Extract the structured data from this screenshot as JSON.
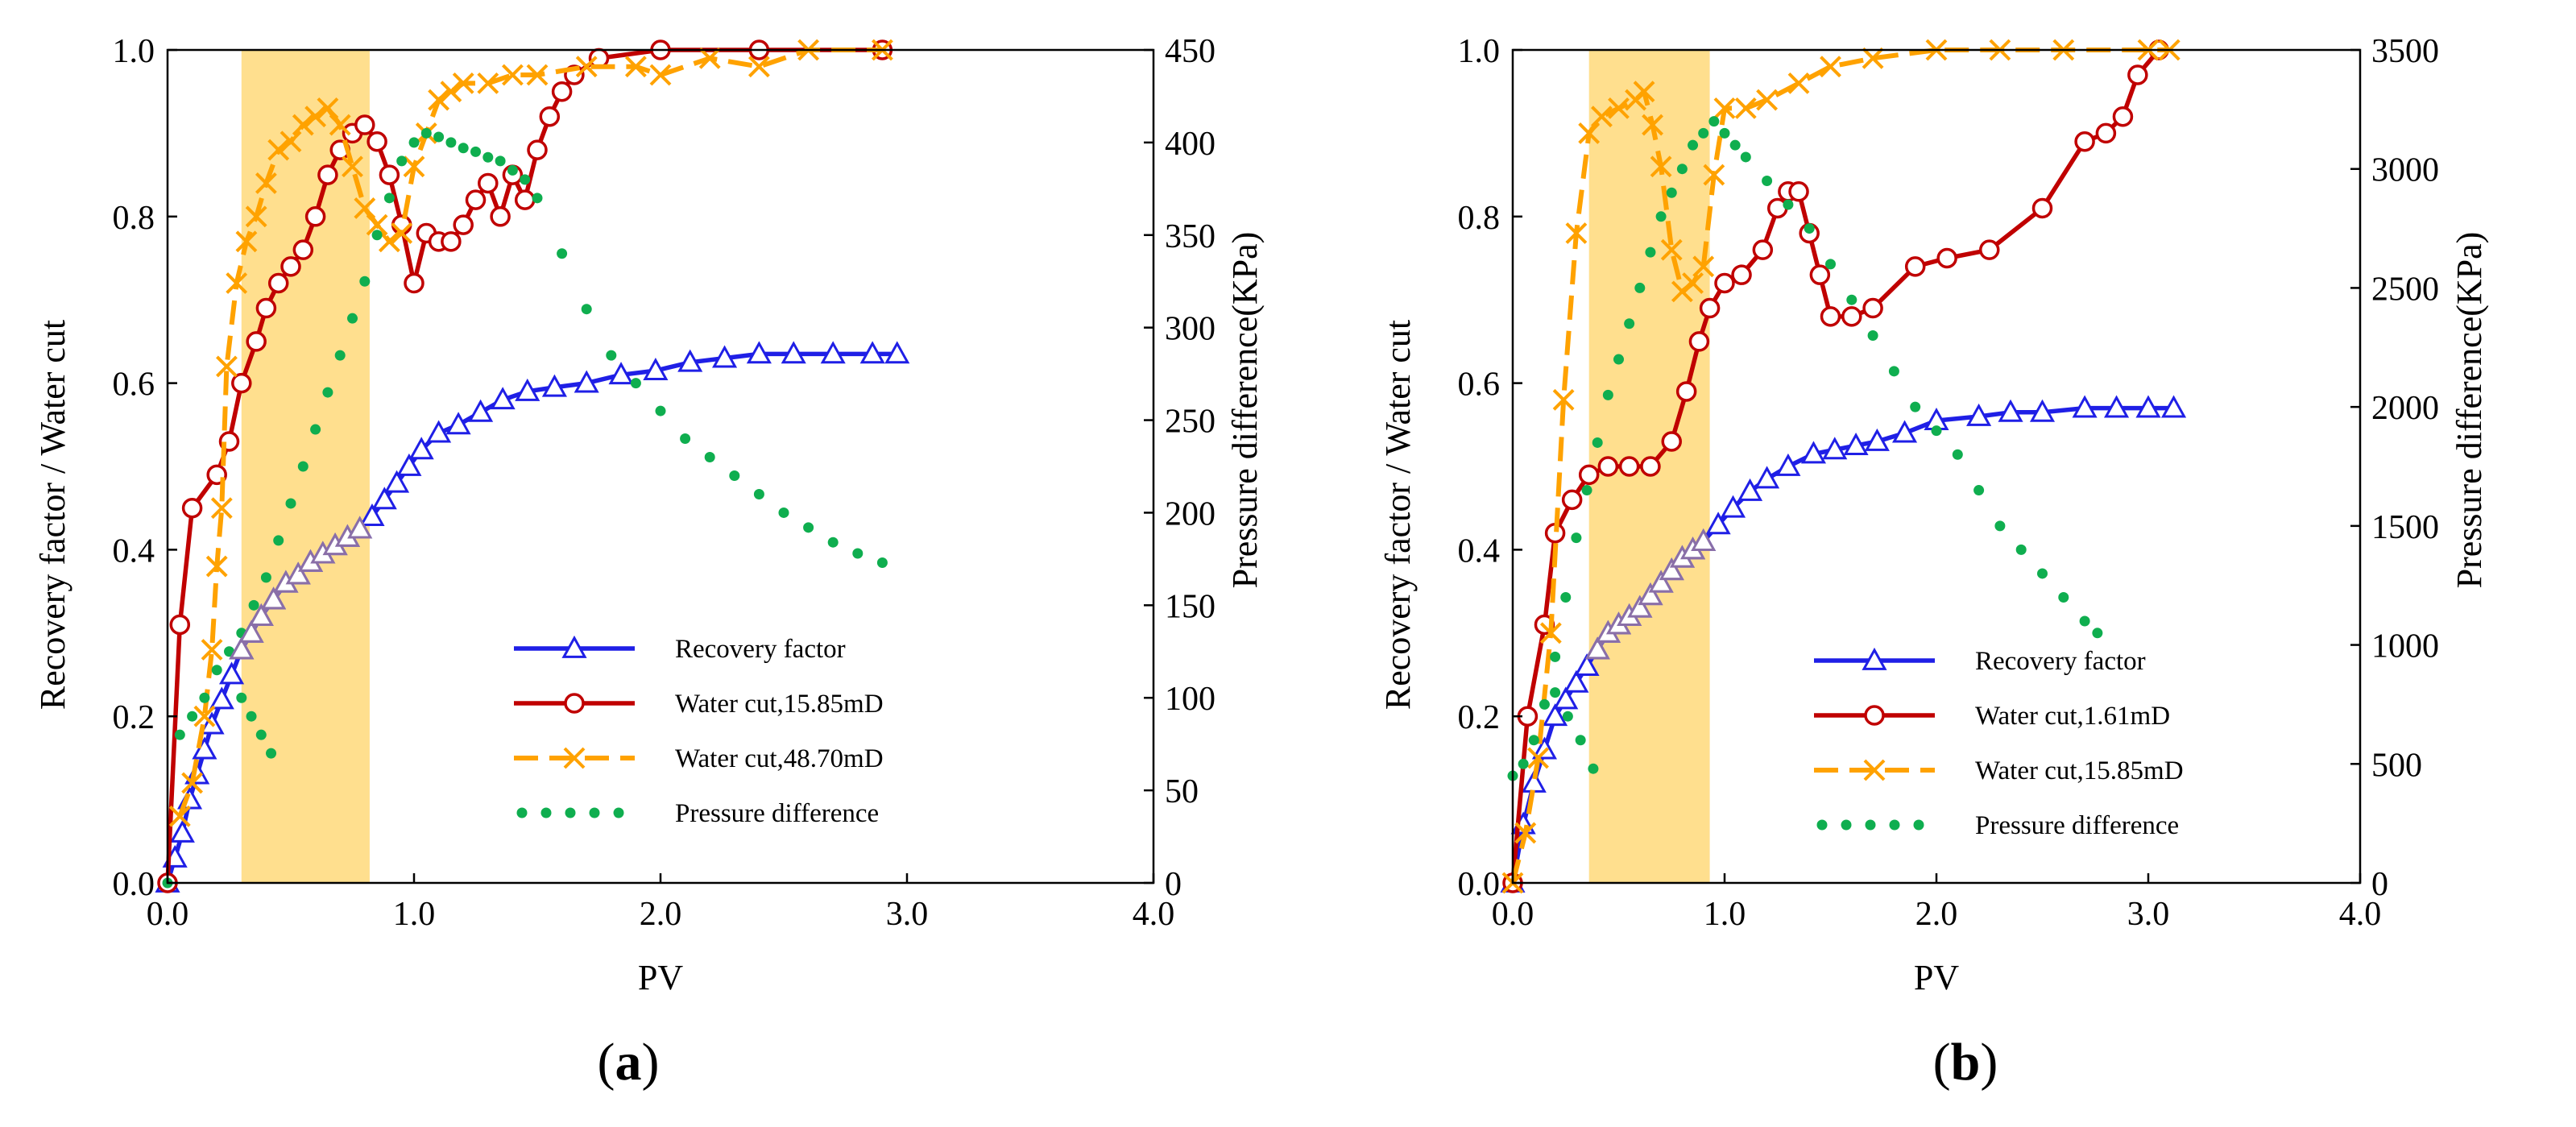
{
  "colors": {
    "recovery": "#1f1fe6",
    "water_a": "#c00000",
    "water_b": "#ffa200",
    "pressure": "#0fae4f",
    "highlight": "#ffd97a",
    "purple_overlay": "#8a6fa8"
  },
  "chart_data": [
    {
      "type": "line",
      "panel": "a",
      "caption_open": "(",
      "caption_letter": "a",
      "caption_close": ")",
      "xlabel": "PV",
      "ylabel": "Recovery factor / Water cut",
      "y2label": "Pressure difference(KPa)",
      "xlim": [
        0,
        4.0
      ],
      "ylim": [
        0,
        1.0
      ],
      "y2lim": [
        0,
        450
      ],
      "xticks": [
        "0.0",
        "1.0",
        "2.0",
        "3.0",
        "4.0"
      ],
      "yticks": [
        "0.0",
        "0.2",
        "0.4",
        "0.6",
        "0.8",
        "1.0"
      ],
      "y2ticks": [
        "0",
        "50",
        "100",
        "150",
        "200",
        "250",
        "300",
        "350",
        "400",
        "450"
      ],
      "highlight_range": [
        0.3,
        0.82
      ],
      "legend_position": "center-right",
      "series": [
        {
          "name": "Recovery factor",
          "style": "solid-triangle",
          "axis": "left",
          "x": [
            0.0,
            0.03,
            0.06,
            0.09,
            0.12,
            0.15,
            0.18,
            0.22,
            0.26,
            0.3,
            0.34,
            0.38,
            0.43,
            0.48,
            0.53,
            0.58,
            0.63,
            0.68,
            0.73,
            0.78,
            0.83,
            0.88,
            0.93,
            0.98,
            1.03,
            1.1,
            1.18,
            1.27,
            1.36,
            1.46,
            1.57,
            1.7,
            1.84,
            1.98,
            2.12,
            2.26,
            2.4,
            2.54,
            2.7,
            2.86,
            2.96
          ],
          "y": [
            0.0,
            0.03,
            0.06,
            0.1,
            0.13,
            0.16,
            0.19,
            0.22,
            0.25,
            0.28,
            0.3,
            0.32,
            0.34,
            0.36,
            0.37,
            0.385,
            0.395,
            0.405,
            0.415,
            0.425,
            0.44,
            0.46,
            0.48,
            0.5,
            0.52,
            0.54,
            0.55,
            0.565,
            0.58,
            0.59,
            0.595,
            0.6,
            0.61,
            0.615,
            0.625,
            0.63,
            0.635,
            0.635,
            0.635,
            0.635,
            0.635
          ]
        },
        {
          "name": "Water cut,15.85mD",
          "style": "solid-circle",
          "axis": "left",
          "x": [
            0.0,
            0.05,
            0.1,
            0.2,
            0.25,
            0.3,
            0.36,
            0.4,
            0.45,
            0.5,
            0.55,
            0.6,
            0.65,
            0.7,
            0.75,
            0.8,
            0.85,
            0.9,
            0.95,
            1.0,
            1.05,
            1.1,
            1.15,
            1.2,
            1.25,
            1.3,
            1.35,
            1.4,
            1.45,
            1.5,
            1.55,
            1.6,
            1.65,
            1.75,
            2.0,
            2.4,
            2.9
          ],
          "y": [
            0.0,
            0.31,
            0.45,
            0.49,
            0.53,
            0.6,
            0.65,
            0.69,
            0.72,
            0.74,
            0.76,
            0.8,
            0.85,
            0.88,
            0.9,
            0.91,
            0.89,
            0.85,
            0.79,
            0.72,
            0.78,
            0.77,
            0.77,
            0.79,
            0.82,
            0.84,
            0.8,
            0.85,
            0.82,
            0.88,
            0.92,
            0.95,
            0.97,
            0.99,
            1.0,
            1.0,
            1.0
          ]
        },
        {
          "name": "Water cut,48.70mD",
          "style": "dash-cross",
          "axis": "left",
          "x": [
            0.05,
            0.1,
            0.15,
            0.18,
            0.2,
            0.22,
            0.24,
            0.28,
            0.32,
            0.36,
            0.4,
            0.45,
            0.5,
            0.55,
            0.6,
            0.65,
            0.7,
            0.75,
            0.8,
            0.85,
            0.9,
            0.95,
            1.0,
            1.05,
            1.1,
            1.15,
            1.2,
            1.3,
            1.4,
            1.5,
            1.7,
            1.9,
            2.0,
            2.2,
            2.4,
            2.6,
            2.9
          ],
          "y": [
            0.08,
            0.12,
            0.2,
            0.28,
            0.38,
            0.45,
            0.62,
            0.72,
            0.77,
            0.8,
            0.84,
            0.88,
            0.89,
            0.91,
            0.92,
            0.93,
            0.91,
            0.86,
            0.81,
            0.79,
            0.77,
            0.78,
            0.86,
            0.9,
            0.94,
            0.95,
            0.96,
            0.96,
            0.97,
            0.97,
            0.98,
            0.98,
            0.97,
            0.99,
            0.98,
            1.0,
            1.0
          ]
        },
        {
          "name": "Pressure difference",
          "style": "dotted",
          "axis": "right",
          "x": [
            0.0,
            0.05,
            0.1,
            0.15,
            0.2,
            0.25,
            0.3,
            0.35,
            0.4,
            0.45,
            0.5,
            0.55,
            0.6,
            0.65,
            0.7,
            0.75,
            0.8,
            0.85,
            0.9,
            0.95,
            1.0,
            1.05,
            1.1,
            1.15,
            1.2,
            1.25,
            1.3,
            1.35,
            1.4,
            1.45,
            1.5,
            1.6,
            1.7,
            1.8,
            1.9,
            2.0,
            2.1,
            2.2,
            2.3,
            2.4,
            2.5,
            2.6,
            2.7,
            2.8,
            2.9
          ],
          "y": [
            0,
            80,
            90,
            100,
            115,
            125,
            135,
            150,
            165,
            185,
            205,
            225,
            245,
            265,
            285,
            305,
            325,
            350,
            370,
            390,
            400,
            405,
            403,
            400,
            397,
            395,
            392,
            390,
            385,
            380,
            370,
            340,
            310,
            285,
            270,
            255,
            240,
            230,
            220,
            210,
            200,
            192,
            184,
            178,
            173
          ]
        },
        {
          "name": "Pressure difference (early)",
          "style": "dotted",
          "axis": "right",
          "x": [
            0.3,
            0.34,
            0.38,
            0.42
          ],
          "y": [
            100,
            90,
            80,
            70
          ]
        }
      ],
      "legend": [
        {
          "label": "Recovery factor",
          "style": "solid-triangle",
          "color": "#1f1fe6"
        },
        {
          "label": "Water cut,15.85mD",
          "style": "solid-circle",
          "color": "#c00000"
        },
        {
          "label": "Water cut,48.70mD",
          "style": "dash-cross",
          "color": "#ffa200"
        },
        {
          "label": "Pressure difference",
          "style": "dotted",
          "color": "#0fae4f"
        }
      ]
    },
    {
      "type": "line",
      "panel": "b",
      "caption_open": "(",
      "caption_letter": "b",
      "caption_close": ")",
      "xlabel": "PV",
      "ylabel": "Recovery factor / Water cut",
      "y2label": "Pressure difference(KPa)",
      "xlim": [
        0,
        4.0
      ],
      "ylim": [
        0,
        1.0
      ],
      "y2lim": [
        0,
        3500
      ],
      "xticks": [
        "0.0",
        "1.0",
        "2.0",
        "3.0",
        "4.0"
      ],
      "yticks": [
        "0.0",
        "0.2",
        "0.4",
        "0.6",
        "0.8",
        "1.0"
      ],
      "y2ticks": [
        "0",
        "500",
        "1000",
        "1500",
        "2000",
        "2500",
        "3000",
        "3500"
      ],
      "highlight_range": [
        0.36,
        0.93
      ],
      "legend_position": "center-right",
      "series": [
        {
          "name": "Recovery factor",
          "style": "solid-triangle",
          "axis": "left",
          "x": [
            0.0,
            0.05,
            0.1,
            0.15,
            0.2,
            0.25,
            0.3,
            0.35,
            0.4,
            0.45,
            0.5,
            0.55,
            0.6,
            0.65,
            0.7,
            0.75,
            0.8,
            0.85,
            0.9,
            0.97,
            1.04,
            1.12,
            1.2,
            1.3,
            1.42,
            1.52,
            1.62,
            1.72,
            1.85,
            2.0,
            2.2,
            2.35,
            2.5,
            2.7,
            2.85,
            3.0,
            3.12
          ],
          "y": [
            0.0,
            0.07,
            0.12,
            0.16,
            0.2,
            0.22,
            0.24,
            0.26,
            0.28,
            0.3,
            0.31,
            0.32,
            0.33,
            0.345,
            0.36,
            0.375,
            0.39,
            0.4,
            0.41,
            0.43,
            0.45,
            0.47,
            0.485,
            0.5,
            0.515,
            0.52,
            0.525,
            0.53,
            0.54,
            0.555,
            0.56,
            0.565,
            0.565,
            0.57,
            0.57,
            0.57,
            0.57
          ]
        },
        {
          "name": "Water cut,1.61mD",
          "style": "solid-circle",
          "axis": "left",
          "x": [
            0.0,
            0.07,
            0.15,
            0.2,
            0.28,
            0.36,
            0.45,
            0.55,
            0.65,
            0.75,
            0.82,
            0.88,
            0.93,
            1.0,
            1.08,
            1.18,
            1.25,
            1.3,
            1.35,
            1.4,
            1.45,
            1.5,
            1.6,
            1.7,
            1.9,
            2.05,
            2.25,
            2.5,
            2.7,
            2.8,
            2.88,
            2.95,
            3.05
          ],
          "y": [
            0.0,
            0.2,
            0.31,
            0.42,
            0.46,
            0.49,
            0.5,
            0.5,
            0.5,
            0.53,
            0.59,
            0.65,
            0.69,
            0.72,
            0.73,
            0.76,
            0.81,
            0.83,
            0.83,
            0.78,
            0.73,
            0.68,
            0.68,
            0.69,
            0.74,
            0.75,
            0.76,
            0.81,
            0.89,
            0.9,
            0.92,
            0.97,
            1.0
          ]
        },
        {
          "name": "Water cut,15.85mD",
          "style": "dash-cross",
          "axis": "left",
          "x": [
            0.0,
            0.06,
            0.12,
            0.18,
            0.24,
            0.3,
            0.36,
            0.42,
            0.5,
            0.58,
            0.62,
            0.66,
            0.7,
            0.75,
            0.8,
            0.85,
            0.9,
            0.95,
            1.0,
            1.1,
            1.2,
            1.35,
            1.5,
            1.7,
            2.0,
            2.3,
            2.6,
            3.0,
            3.1
          ],
          "y": [
            0.0,
            0.06,
            0.15,
            0.3,
            0.58,
            0.78,
            0.9,
            0.92,
            0.93,
            0.94,
            0.95,
            0.91,
            0.86,
            0.76,
            0.71,
            0.72,
            0.74,
            0.85,
            0.93,
            0.93,
            0.94,
            0.96,
            0.98,
            0.99,
            1.0,
            1.0,
            1.0,
            1.0,
            1.0
          ]
        },
        {
          "name": "Pressure difference",
          "style": "dotted",
          "axis": "right",
          "x": [
            0.0,
            0.05,
            0.1,
            0.15,
            0.2,
            0.25,
            0.3,
            0.35,
            0.4,
            0.45,
            0.5,
            0.55,
            0.6,
            0.65,
            0.7,
            0.75,
            0.8,
            0.85,
            0.9,
            0.95,
            1.0,
            1.05,
            1.1,
            1.2,
            1.3,
            1.4,
            1.5,
            1.6,
            1.7,
            1.8,
            1.9,
            2.0,
            2.1,
            2.2,
            2.3,
            2.4,
            2.5,
            2.6,
            2.7,
            2.76
          ],
          "y": [
            450,
            500,
            600,
            750,
            950,
            1200,
            1450,
            1650,
            1850,
            2050,
            2200,
            2350,
            2500,
            2650,
            2800,
            2900,
            3000,
            3100,
            3150,
            3200,
            3150,
            3100,
            3050,
            2950,
            2850,
            2750,
            2600,
            2450,
            2300,
            2150,
            2000,
            1900,
            1800,
            1650,
            1500,
            1400,
            1300,
            1200,
            1100,
            1050
          ]
        },
        {
          "name": "Pressure difference (early)",
          "style": "dotted",
          "axis": "right",
          "x": [
            0.2,
            0.26,
            0.32,
            0.38
          ],
          "y": [
            800,
            700,
            600,
            480
          ]
        }
      ],
      "legend": [
        {
          "label": "Recovery factor",
          "style": "solid-triangle",
          "color": "#1f1fe6"
        },
        {
          "label": "Water cut,1.61mD",
          "style": "solid-circle",
          "color": "#c00000"
        },
        {
          "label": "Water cut,15.85mD",
          "style": "dash-cross",
          "color": "#ffa200"
        },
        {
          "label": "Pressure difference",
          "style": "dotted",
          "color": "#0fae4f"
        }
      ]
    }
  ]
}
